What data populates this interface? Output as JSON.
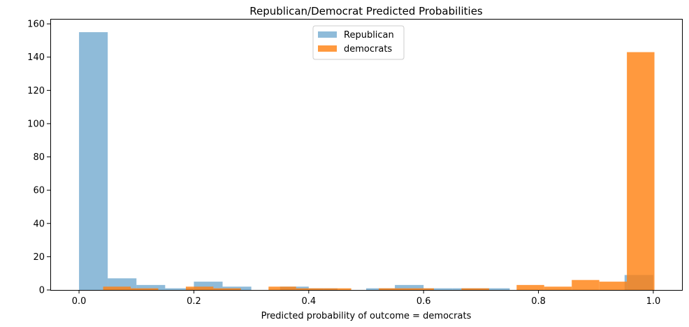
{
  "chart_data": {
    "type": "bar",
    "title": "Republican/Democrat Predicted Probabilities",
    "xlabel": "Predicted probability of outcome = democrats",
    "ylabel": "",
    "xlim": [
      -0.05,
      1.05
    ],
    "ylim": [
      0,
      163
    ],
    "xticks": [
      0.0,
      0.2,
      0.4,
      0.6,
      0.8,
      1.0
    ],
    "xtick_labels": [
      "0.0",
      "0.2",
      "0.4",
      "0.6",
      "0.8",
      "1.0"
    ],
    "yticks": [
      0,
      20,
      40,
      60,
      80,
      100,
      120,
      140,
      160
    ],
    "ytick_labels": [
      "0",
      "20",
      "40",
      "60",
      "80",
      "100",
      "120",
      "140",
      "160"
    ],
    "grid": false,
    "legend_position": "upper center",
    "series": [
      {
        "name": "Republican",
        "color": "#1f77b4",
        "alpha": 0.5,
        "bins": [
          {
            "x0": 0.0,
            "x1": 0.05,
            "count": 155
          },
          {
            "x0": 0.05,
            "x1": 0.1,
            "count": 7
          },
          {
            "x0": 0.1,
            "x1": 0.15,
            "count": 3
          },
          {
            "x0": 0.15,
            "x1": 0.2,
            "count": 1
          },
          {
            "x0": 0.2,
            "x1": 0.25,
            "count": 5
          },
          {
            "x0": 0.25,
            "x1": 0.3,
            "count": 2
          },
          {
            "x0": 0.35,
            "x1": 0.4,
            "count": 2
          },
          {
            "x0": 0.4,
            "x1": 0.45,
            "count": 1
          },
          {
            "x0": 0.5,
            "x1": 0.55,
            "count": 1
          },
          {
            "x0": 0.55,
            "x1": 0.6,
            "count": 3
          },
          {
            "x0": 0.6,
            "x1": 0.65,
            "count": 1
          },
          {
            "x0": 0.65,
            "x1": 0.7,
            "count": 1
          },
          {
            "x0": 0.7,
            "x1": 0.75,
            "count": 1
          },
          {
            "x0": 0.95,
            "x1": 1.0,
            "count": 9
          }
        ]
      },
      {
        "name": "democrats",
        "color": "#ff7f0e",
        "alpha": 0.8,
        "bins": [
          {
            "x0": 0.042,
            "x1": 0.09,
            "count": 2
          },
          {
            "x0": 0.09,
            "x1": 0.138,
            "count": 1
          },
          {
            "x0": 0.186,
            "x1": 0.234,
            "count": 2
          },
          {
            "x0": 0.234,
            "x1": 0.282,
            "count": 1
          },
          {
            "x0": 0.33,
            "x1": 0.378,
            "count": 2
          },
          {
            "x0": 0.378,
            "x1": 0.426,
            "count": 1
          },
          {
            "x0": 0.426,
            "x1": 0.474,
            "count": 1
          },
          {
            "x0": 0.522,
            "x1": 0.57,
            "count": 1
          },
          {
            "x0": 0.57,
            "x1": 0.618,
            "count": 1
          },
          {
            "x0": 0.666,
            "x1": 0.714,
            "count": 1
          },
          {
            "x0": 0.762,
            "x1": 0.81,
            "count": 3
          },
          {
            "x0": 0.81,
            "x1": 0.858,
            "count": 2
          },
          {
            "x0": 0.858,
            "x1": 0.906,
            "count": 6
          },
          {
            "x0": 0.906,
            "x1": 0.954,
            "count": 5
          },
          {
            "x0": 0.954,
            "x1": 1.002,
            "count": 143
          }
        ]
      }
    ]
  }
}
